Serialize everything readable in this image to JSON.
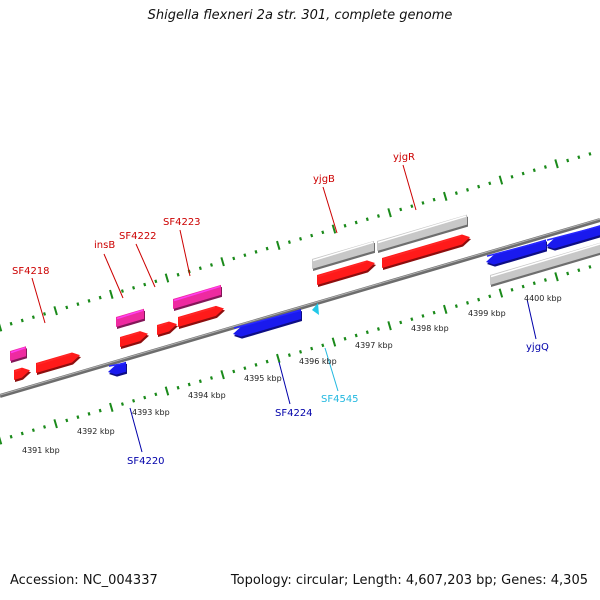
{
  "title": "Shigella flexneri 2a str. 301, complete genome",
  "footer": {
    "accession": "Accession: NC_004337",
    "topology": "Topology: circular; Length: 4,607,203 bp; Genes: 4,305"
  },
  "colors": {
    "forward_gene": "#ff1a1a",
    "reverse_gene": "#1a1aee",
    "insertion_element": "#ee2aa0",
    "pseudo_gene": "#c8c8c8",
    "backbone": "#8a8a8a",
    "tick": "#1a8a1a",
    "small_feature": "#22c8e8"
  },
  "scale_labels": [
    "4391 kbp",
    "4392 kbp",
    "4393 kbp",
    "4394 kbp",
    "4395 kbp",
    "4396 kbp",
    "4397 kbp",
    "4398 kbp",
    "4399 kbp",
    "4400 kbp"
  ],
  "gene_labels": [
    {
      "text": "SF4218",
      "color": "#cc0000"
    },
    {
      "text": "insB",
      "color": "#cc0000"
    },
    {
      "text": "SF4222",
      "color": "#cc0000"
    },
    {
      "text": "SF4223",
      "color": "#cc0000"
    },
    {
      "text": "yjgB",
      "color": "#cc0000"
    },
    {
      "text": "yjgR",
      "color": "#cc0000"
    },
    {
      "text": "SF4220",
      "color": "#0000aa"
    },
    {
      "text": "SF4224",
      "color": "#0000aa"
    },
    {
      "text": "SF4545",
      "color": "#22b8e0"
    },
    {
      "text": "yjgQ",
      "color": "#0000aa"
    }
  ]
}
